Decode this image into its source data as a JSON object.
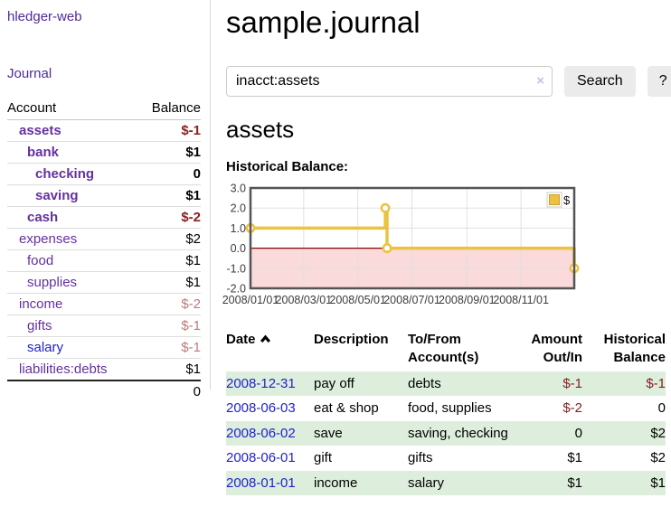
{
  "sidebar": {
    "brand": "hledger-web",
    "journal_label": "Journal",
    "accounts": {
      "headers": {
        "account": "Account",
        "balance": "Balance"
      },
      "rows": [
        {
          "label": "assets",
          "indent": 0,
          "bold": true,
          "balance": "$-1",
          "balance_color": "negative"
        },
        {
          "label": "bank",
          "indent": 1,
          "bold": true,
          "balance": "$1",
          "balance_color": "normal"
        },
        {
          "label": "checking",
          "indent": 2,
          "bold": true,
          "balance": "0",
          "balance_color": "normal"
        },
        {
          "label": "saving",
          "indent": 2,
          "bold": true,
          "balance": "$1",
          "balance_color": "normal"
        },
        {
          "label": "cash",
          "indent": 1,
          "bold": true,
          "balance": "$-2",
          "balance_color": "negative"
        },
        {
          "label": "expenses",
          "indent": 0,
          "bold": false,
          "balance": "$2",
          "balance_color": "normal"
        },
        {
          "label": "food",
          "indent": 1,
          "bold": false,
          "balance": "$1",
          "balance_color": "normal"
        },
        {
          "label": "supplies",
          "indent": 1,
          "bold": false,
          "balance": "$1",
          "balance_color": "normal"
        },
        {
          "label": "income",
          "indent": 0,
          "bold": false,
          "balance": "$-2",
          "balance_color": "negative-dim"
        },
        {
          "label": "gifts",
          "indent": 1,
          "bold": false,
          "balance": "$-1",
          "balance_color": "negative-dim"
        },
        {
          "label": "salary",
          "indent": 1,
          "bold": false,
          "balance": "$-1",
          "balance_color": "negative-dim",
          "link_color": "blue"
        },
        {
          "label": "liabilities:debts",
          "indent": 0,
          "bold": false,
          "balance": "$1",
          "balance_color": "normal"
        }
      ],
      "total": "0"
    }
  },
  "main": {
    "title": "sample.journal",
    "search": {
      "value": "inacct:assets",
      "clear_icon": "×",
      "button_label": "Search",
      "help_label": "?"
    },
    "account_heading": "assets",
    "chart_title": "Historical Balance:"
  },
  "chart_data": {
    "type": "line",
    "title": "Historical Balance:",
    "steps": true,
    "xlim": [
      "2008-01-01",
      "2008-12-31"
    ],
    "ylim": [
      -2,
      3
    ],
    "series": [
      {
        "name": "$",
        "color": "#EDC240",
        "points": [
          {
            "x": "2008-01-01",
            "y": 1
          },
          {
            "x": "2008-06-01",
            "y": 2
          },
          {
            "x": "2008-06-03",
            "y": 0
          },
          {
            "x": "2008-12-31",
            "y": -1
          }
        ]
      }
    ],
    "x_ticks": [
      {
        "x": "2008-01-01",
        "label": "2008/01/01"
      },
      {
        "x": "2008-03-01",
        "label": "2008/03/01"
      },
      {
        "x": "2008-05-01",
        "label": "2008/05/01"
      },
      {
        "x": "2008-07-01",
        "label": "2008/07/01"
      },
      {
        "x": "2008-09-01",
        "label": "2008/09/01"
      },
      {
        "x": "2008-11-01",
        "label": "2008/11/01"
      }
    ],
    "y_ticks": [
      {
        "v": 3,
        "label": "3.0"
      },
      {
        "v": 2,
        "label": "2.0"
      },
      {
        "v": 1,
        "label": "1.0"
      },
      {
        "v": 0,
        "label": "0.0"
      },
      {
        "v": -1,
        "label": "-1.0"
      },
      {
        "v": -2,
        "label": "-2.0"
      }
    ],
    "grid": true,
    "negative_region_color": "#fadada",
    "zero_line_color": "#8b0000",
    "legend": {
      "label": "$",
      "position": "top-right"
    }
  },
  "register": {
    "headers": {
      "date": "Date",
      "description": "Description",
      "tofrom": "To/From Account(s)",
      "amount": "Amount Out/In",
      "balance": "Historical Balance"
    },
    "sort": {
      "column": "date",
      "direction": "ascending"
    },
    "rows": [
      {
        "date": "2008-12-31",
        "description": "pay off",
        "accounts": "debts",
        "amount": "$-1",
        "balance": "$-1",
        "amount_negative": true,
        "balance_negative": true,
        "shaded": true
      },
      {
        "date": "2008-06-03",
        "description": "eat & shop",
        "accounts": "food, supplies",
        "amount": "$-2",
        "balance": "0",
        "amount_negative": true,
        "balance_negative": false,
        "shaded": false
      },
      {
        "date": "2008-06-02",
        "description": "save",
        "accounts": "saving, checking",
        "amount": "0",
        "balance": "$2",
        "amount_negative": false,
        "balance_negative": false,
        "shaded": true
      },
      {
        "date": "2008-06-01",
        "description": "gift",
        "accounts": "gifts",
        "amount": "$1",
        "balance": "$2",
        "amount_negative": false,
        "balance_negative": false,
        "shaded": false
      },
      {
        "date": "2008-01-01",
        "description": "income",
        "accounts": "salary",
        "amount": "$1",
        "balance": "$1",
        "amount_negative": false,
        "balance_negative": false,
        "shaded": true
      }
    ]
  },
  "colors": {
    "link_purple": "#63319f",
    "brand_purple": "#4e2a9e",
    "link_blue": "#2222cc",
    "negative": "#87211f",
    "negative_dim": "#bb7b7b",
    "row_stripe_green": "#ddeedd",
    "chart_series_yellow": "#EDC240",
    "chart_negative_region": "#fadada",
    "chart_zero_line": "#8b0000"
  }
}
